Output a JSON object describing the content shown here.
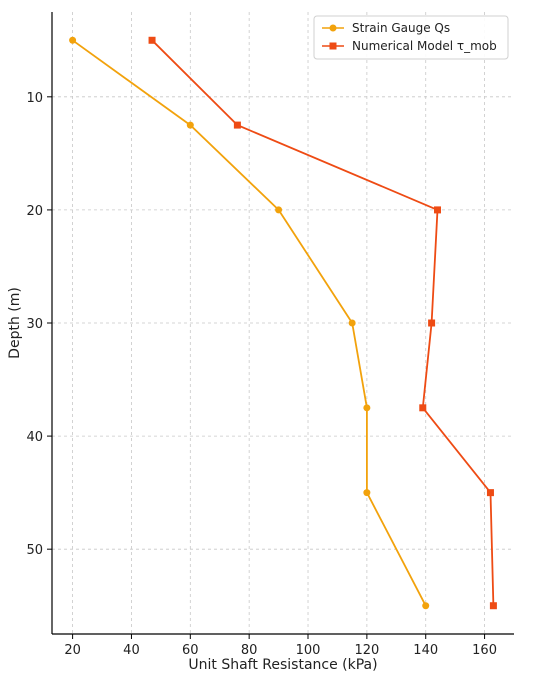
{
  "chart_data": {
    "type": "line",
    "xlabel": "Unit Shaft Resistance (kPa)",
    "ylabel": "Depth (m)",
    "xlim": [
      13,
      170
    ],
    "ylim": [
      57.5,
      2.5
    ],
    "y_inverted": true,
    "grid": true,
    "legend_position": "top-right",
    "xticks": [
      "20",
      "40",
      "60",
      "80",
      "100",
      "120",
      "140",
      "160"
    ],
    "yticks": [
      "10",
      "20",
      "30",
      "40",
      "50"
    ],
    "series": [
      {
        "name": "Strain Gauge Qs",
        "color": "#f2a20c",
        "marker": "circle",
        "x": [
          20,
          60,
          90,
          115,
          120,
          120,
          140
        ],
        "y": [
          5,
          12.5,
          20,
          30,
          37.5,
          45,
          55
        ]
      },
      {
        "name": "Numerical Model τ_mob",
        "color": "#ee4b14",
        "marker": "square",
        "x": [
          47,
          76,
          144,
          142,
          139,
          162,
          163
        ],
        "y": [
          5,
          12.5,
          20,
          30,
          37.5,
          45,
          55
        ]
      }
    ]
  }
}
